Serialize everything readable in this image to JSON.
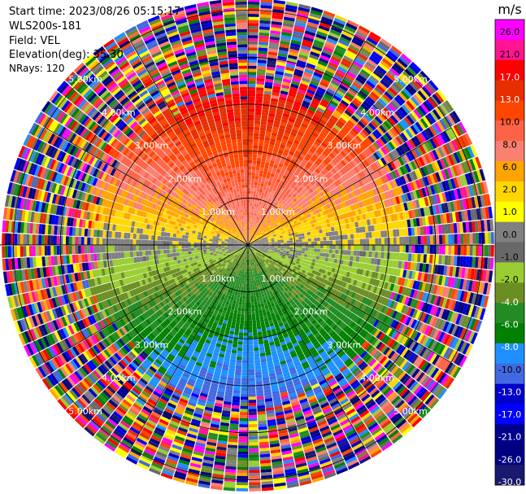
{
  "header": {
    "start_time": "Start time: 2023/08/26 05:15:17",
    "instrument": "WLS200s-181",
    "field": "Field: VEL",
    "elevation": "Elevation(deg): 35.30",
    "nrays": "NRays: 120"
  },
  "chart_data": {
    "type": "heatmap",
    "projection": "ppi",
    "field": "VEL",
    "nrays": 120,
    "max_range_km": 5.2,
    "range_ring_labels": [
      "1.00km",
      "2.00km",
      "3.00km",
      "4.00km",
      "5.00km"
    ],
    "range_rings_km": [
      1,
      2,
      3,
      4,
      5
    ],
    "colorbar": {
      "units": "m/s",
      "tick_labels": [
        "26.0",
        "21.0",
        "17.0",
        "13.0",
        "10.0",
        "8.0",
        "6.0",
        "2.0",
        "1.0",
        "0.0",
        "-1.0",
        "-2.0",
        "-4.0",
        "-6.0",
        "-8.0",
        "-10.0",
        "-13.0",
        "-17.0",
        "-21.0",
        "-26.0",
        "-30.0"
      ],
      "colors": [
        "#ff00ff",
        "#ff1493",
        "#ff0000",
        "#e62e00",
        "#ff4500",
        "#ff6347",
        "#fa8072",
        "#ffa500",
        "#ffd700",
        "#ffff00",
        "#808080",
        "#696969",
        "#9acd32",
        "#6b8e23",
        "#228b22",
        "#008000",
        "#1e90ff",
        "#4169e1",
        "#0000cd",
        "#0000ff",
        "#00008b",
        "#000080",
        "#191970"
      ]
    },
    "pattern": "receding (positive) velocities toward north, approaching (negative) toward south, noisy beyond ~3.5 km"
  }
}
